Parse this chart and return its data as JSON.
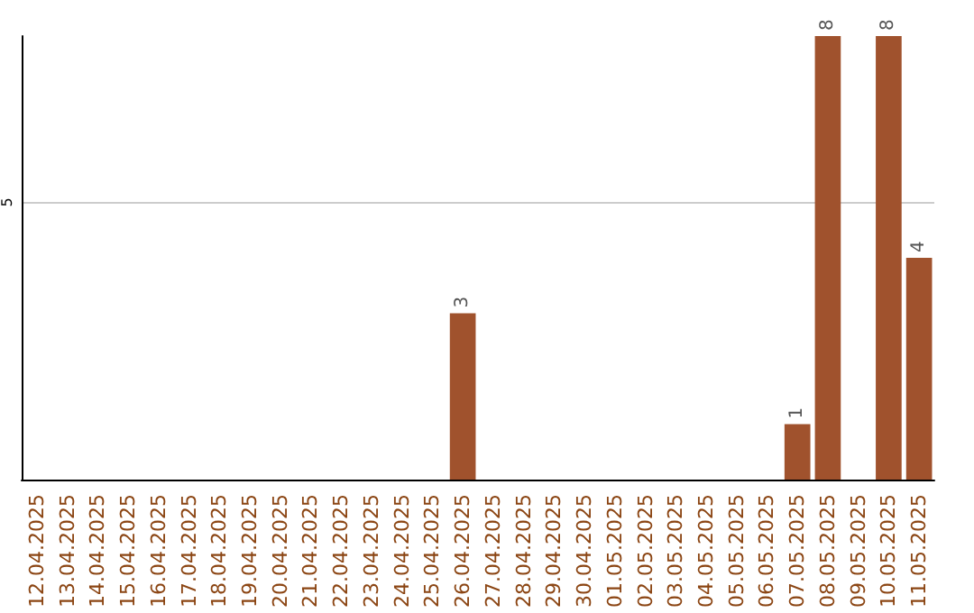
{
  "chart_data": {
    "type": "bar",
    "categories": [
      "12.04.2025",
      "13.04.2025",
      "14.04.2025",
      "15.04.2025",
      "16.04.2025",
      "17.04.2025",
      "18.04.2025",
      "19.04.2025",
      "20.04.2025",
      "21.04.2025",
      "22.04.2025",
      "23.04.2025",
      "24.04.2025",
      "25.04.2025",
      "26.04.2025",
      "27.04.2025",
      "28.04.2025",
      "29.04.2025",
      "30.04.2025",
      "01.05.2025",
      "02.05.2025",
      "03.05.2025",
      "04.05.2025",
      "05.05.2025",
      "06.05.2025",
      "07.05.2025",
      "08.05.2025",
      "09.05.2025",
      "10.05.2025",
      "11.05.2025"
    ],
    "values": [
      null,
      null,
      null,
      null,
      null,
      null,
      null,
      null,
      null,
      null,
      null,
      null,
      null,
      null,
      3,
      null,
      null,
      null,
      null,
      null,
      null,
      null,
      null,
      null,
      null,
      1,
      8,
      null,
      8,
      4
    ],
    "data_labels": true,
    "color": "#a0522d",
    "ylim": [
      0,
      8
    ],
    "yticks": [
      5
    ],
    "grid": "y"
  }
}
